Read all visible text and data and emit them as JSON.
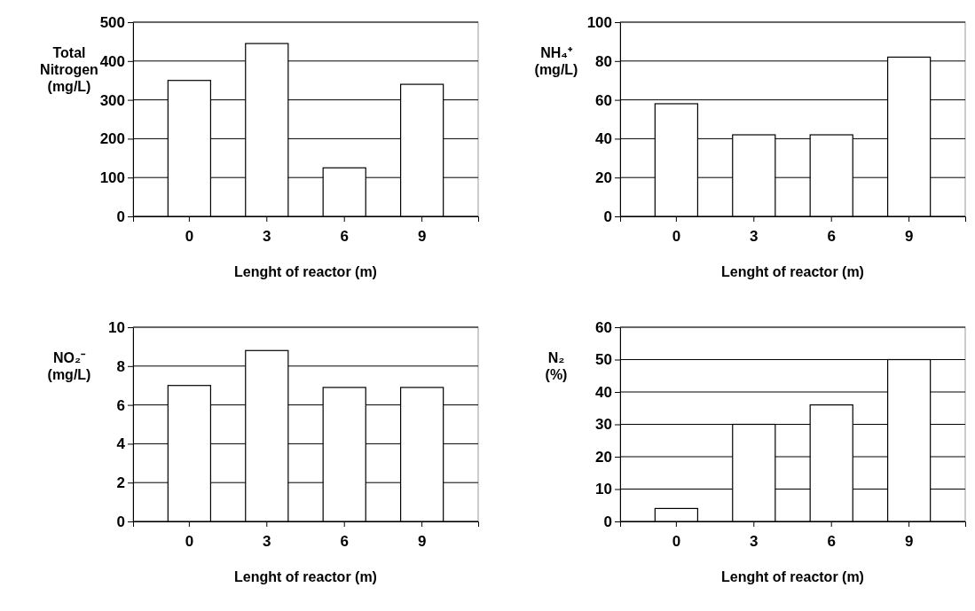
{
  "chart_data": [
    {
      "type": "bar",
      "ylabel": "Total\nNitrogen\n(mg/L)",
      "xlabel": "Lenght of reactor (m)",
      "categories": [
        "0",
        "3",
        "6",
        "9"
      ],
      "values": [
        350,
        445,
        125,
        340
      ],
      "color": "#ffffff",
      "ylim": [
        0,
        500
      ],
      "yticks": [
        0,
        100,
        200,
        300,
        400,
        500
      ],
      "grid": "y"
    },
    {
      "type": "bar",
      "ylabel": "NH₄⁺\n(mg/L)",
      "xlabel": "Lenght of reactor (m)",
      "categories": [
        "0",
        "3",
        "6",
        "9"
      ],
      "values": [
        58,
        42,
        42,
        82
      ],
      "color": "#ffffff",
      "ylim": [
        0,
        100
      ],
      "yticks": [
        0,
        20,
        40,
        60,
        80,
        100
      ],
      "grid": "y"
    },
    {
      "type": "bar",
      "ylabel": "NO₂⁻\n(mg/L)",
      "xlabel": "Lenght of reactor (m)",
      "categories": [
        "0",
        "3",
        "6",
        "9"
      ],
      "values": [
        7.0,
        8.8,
        6.9,
        6.9
      ],
      "color": "#ffffff",
      "ylim": [
        0,
        10
      ],
      "yticks": [
        0,
        2,
        4,
        6,
        8,
        10
      ],
      "grid": "y"
    },
    {
      "type": "bar",
      "ylabel": "N₂\n(%)",
      "xlabel": "Lenght of reactor (m)",
      "categories": [
        "0",
        "3",
        "6",
        "9"
      ],
      "values": [
        4,
        30,
        36,
        50
      ],
      "color": "#ffffff",
      "ylim": [
        0,
        60
      ],
      "yticks": [
        0,
        10,
        20,
        30,
        40,
        50,
        60
      ],
      "grid": "y"
    }
  ]
}
